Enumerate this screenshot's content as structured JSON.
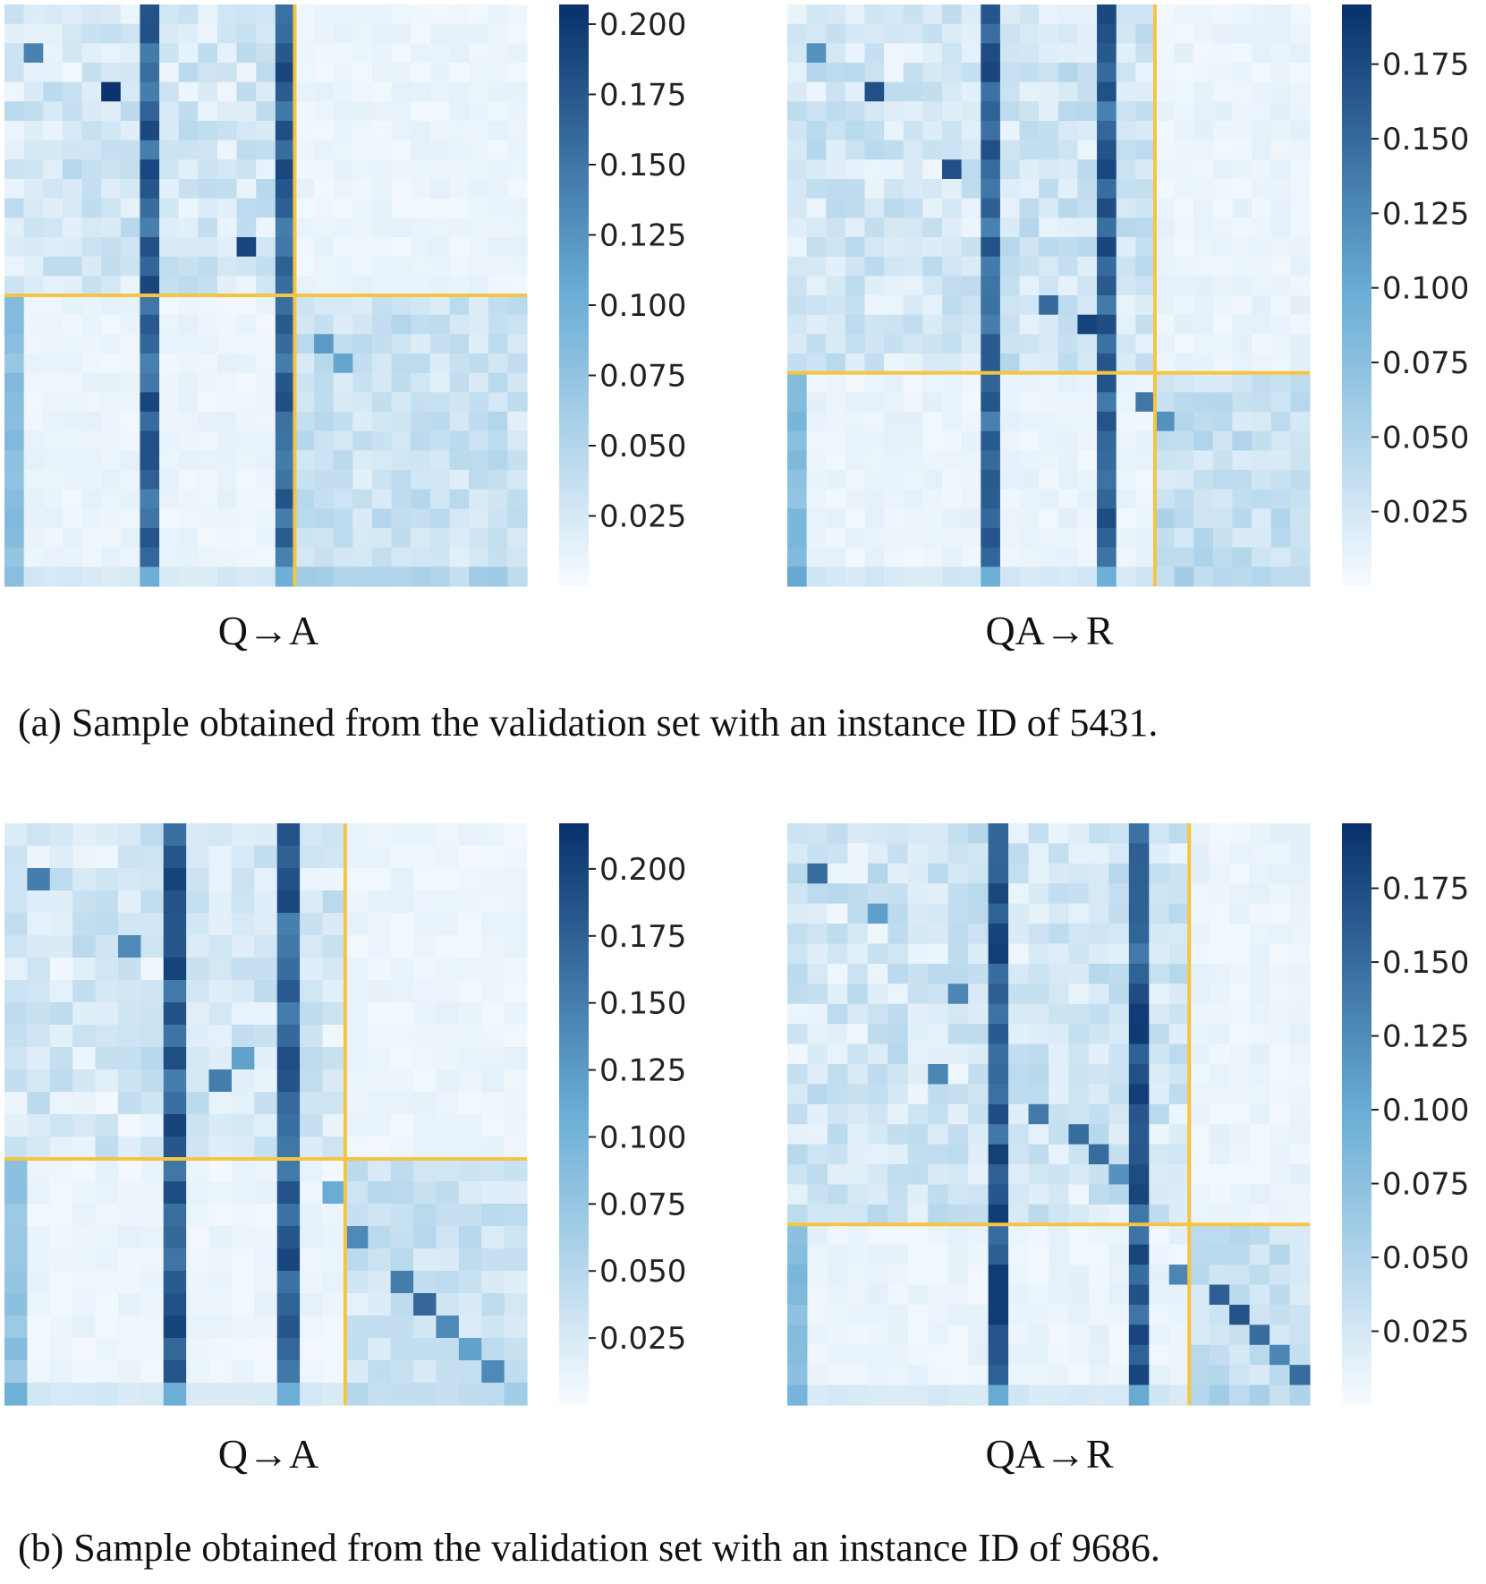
{
  "captions": {
    "a": "(a) Sample obtained from the validation set with an instance ID of 5431.",
    "b": "(b) Sample obtained from the validation set with an instance ID of 9686."
  },
  "colors": {
    "cmap_low": "#f7fbff",
    "cmap_mid": "#6baed6",
    "cmap_high": "#08306b",
    "separator": "#f5c542"
  },
  "chart_data": [
    {
      "type": "heatmap",
      "panel": "a-left",
      "xlabel": "Q→A",
      "rows": 30,
      "cols": 27,
      "separator_index": 15,
      "colorbar": {
        "range": [
          0.0,
          0.207
        ],
        "ticks": [
          "0.200",
          "0.175",
          "0.150",
          "0.125",
          "0.100",
          "0.075",
          "0.050",
          "0.025"
        ],
        "tick_values": [
          0.2,
          0.175,
          0.15,
          0.125,
          0.1,
          0.075,
          0.05,
          0.025
        ]
      },
      "strong_columns": [
        {
          "col": 7,
          "value": 0.17
        },
        {
          "col": 14,
          "value": 0.17
        }
      ],
      "diagonal_peaks": [
        {
          "row": 4,
          "col": 5,
          "value": 0.205
        },
        {
          "row": 2,
          "col": 1,
          "value": 0.14
        },
        {
          "row": 12,
          "col": 12,
          "value": 0.19
        },
        {
          "row": 17,
          "col": 16,
          "value": 0.12
        },
        {
          "row": 18,
          "col": 17,
          "value": 0.11
        }
      ]
    },
    {
      "type": "heatmap",
      "panel": "a-right",
      "xlabel": "QA→R",
      "rows": 30,
      "cols": 27,
      "separator_index": 19,
      "colorbar": {
        "range": [
          0.0,
          0.195
        ],
        "ticks": [
          "0.175",
          "0.150",
          "0.125",
          "0.100",
          "0.075",
          "0.050",
          "0.025"
        ],
        "tick_values": [
          0.175,
          0.15,
          0.125,
          0.1,
          0.075,
          0.05,
          0.025
        ]
      },
      "strong_columns": [
        {
          "col": 10,
          "value": 0.16
        },
        {
          "col": 16,
          "value": 0.16
        }
      ],
      "diagonal_peaks": [
        {
          "row": 2,
          "col": 1,
          "value": 0.12
        },
        {
          "row": 4,
          "col": 4,
          "value": 0.17
        },
        {
          "row": 8,
          "col": 8,
          "value": 0.17
        },
        {
          "row": 15,
          "col": 13,
          "value": 0.15
        },
        {
          "row": 16,
          "col": 15,
          "value": 0.18
        },
        {
          "row": 20,
          "col": 18,
          "value": 0.14
        },
        {
          "row": 21,
          "col": 19,
          "value": 0.12
        }
      ]
    },
    {
      "type": "heatmap",
      "panel": "b-left",
      "xlabel": "Q→A",
      "rows": 26,
      "cols": 23,
      "separator_index": 15,
      "colorbar": {
        "range": [
          0.0,
          0.217
        ],
        "ticks": [
          "0.200",
          "0.175",
          "0.150",
          "0.125",
          "0.100",
          "0.075",
          "0.050",
          "0.025"
        ],
        "tick_values": [
          0.2,
          0.175,
          0.15,
          0.125,
          0.1,
          0.075,
          0.05,
          0.025
        ]
      },
      "strong_columns": [
        {
          "col": 7,
          "value": 0.18
        },
        {
          "col": 12,
          "value": 0.18
        }
      ],
      "diagonal_peaks": [
        {
          "row": 2,
          "col": 1,
          "value": 0.15
        },
        {
          "row": 5,
          "col": 5,
          "value": 0.14
        },
        {
          "row": 11,
          "col": 9,
          "value": 0.15
        },
        {
          "row": 10,
          "col": 10,
          "value": 0.12
        },
        {
          "row": 16,
          "col": 14,
          "value": 0.11
        },
        {
          "row": 18,
          "col": 15,
          "value": 0.14
        },
        {
          "row": 20,
          "col": 17,
          "value": 0.15
        },
        {
          "row": 21,
          "col": 18,
          "value": 0.17
        },
        {
          "row": 22,
          "col": 19,
          "value": 0.14
        },
        {
          "row": 23,
          "col": 20,
          "value": 0.12
        },
        {
          "row": 24,
          "col": 21,
          "value": 0.14
        }
      ]
    },
    {
      "type": "heatmap",
      "panel": "b-right",
      "xlabel": "QA→R",
      "rows": 29,
      "cols": 26,
      "separator_index": 20,
      "colorbar": {
        "range": [
          0.0,
          0.197
        ],
        "ticks": [
          "0.175",
          "0.150",
          "0.125",
          "0.100",
          "0.075",
          "0.050",
          "0.025"
        ],
        "tick_values": [
          0.175,
          0.15,
          0.125,
          0.1,
          0.075,
          0.05,
          0.025
        ]
      },
      "strong_columns": [
        {
          "col": 10,
          "value": 0.17
        },
        {
          "col": 17,
          "value": 0.17
        }
      ],
      "diagonal_peaks": [
        {
          "row": 2,
          "col": 1,
          "value": 0.15
        },
        {
          "row": 4,
          "col": 4,
          "value": 0.11
        },
        {
          "row": 8,
          "col": 8,
          "value": 0.13
        },
        {
          "row": 12,
          "col": 7,
          "value": 0.13
        },
        {
          "row": 14,
          "col": 12,
          "value": 0.14
        },
        {
          "row": 15,
          "col": 14,
          "value": 0.15
        },
        {
          "row": 16,
          "col": 15,
          "value": 0.15
        },
        {
          "row": 17,
          "col": 16,
          "value": 0.12
        },
        {
          "row": 22,
          "col": 19,
          "value": 0.13
        },
        {
          "row": 23,
          "col": 21,
          "value": 0.16
        },
        {
          "row": 24,
          "col": 22,
          "value": 0.17
        },
        {
          "row": 25,
          "col": 23,
          "value": 0.15
        },
        {
          "row": 26,
          "col": 24,
          "value": 0.13
        },
        {
          "row": 27,
          "col": 25,
          "value": 0.15
        }
      ]
    }
  ]
}
